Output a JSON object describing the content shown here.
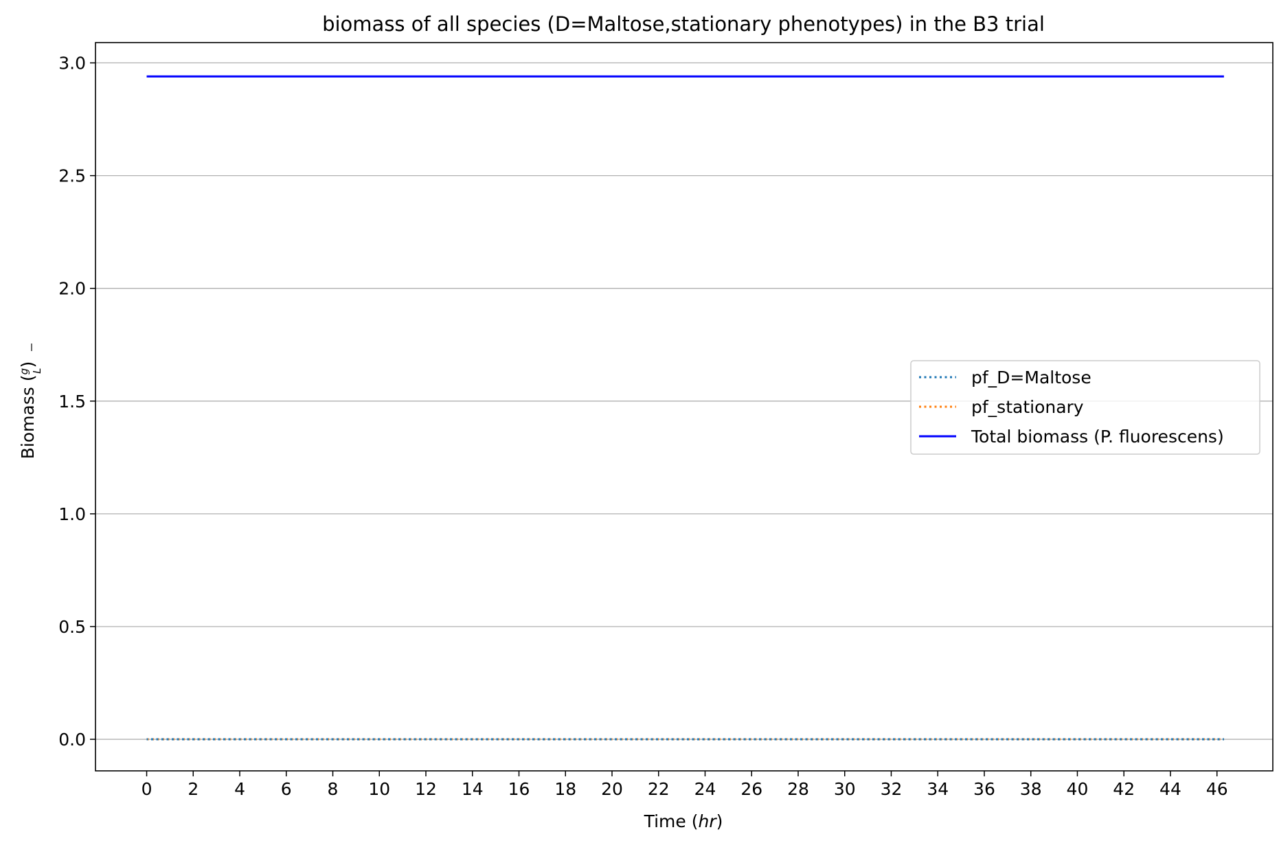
{
  "chart_data": {
    "type": "line",
    "title": "biomass of all species (D=Maltose,stationary phenotypes) in the B3 trial",
    "xlabel": {
      "prefix": "Time (",
      "italic": "hr",
      "suffix": ")"
    },
    "ylabel": {
      "prefix": "Biomass (",
      "numerator": "g",
      "denominator": "L",
      "suffix": ")"
    },
    "xlim": [
      -2.2,
      48.4
    ],
    "ylim": [
      -0.14,
      3.09
    ],
    "x_ticks": [
      0,
      2,
      4,
      6,
      8,
      10,
      12,
      14,
      16,
      18,
      20,
      22,
      24,
      26,
      28,
      30,
      32,
      34,
      36,
      38,
      40,
      42,
      44,
      46
    ],
    "y_ticks": [
      0.0,
      0.5,
      1.0,
      1.5,
      2.0,
      2.5,
      3.0
    ],
    "y_tick_labels": [
      "0.0",
      "0.5",
      "1.0",
      "1.5",
      "2.0",
      "2.5",
      "3.0"
    ],
    "grid": "y",
    "legend_position": "center-right",
    "series": [
      {
        "name": "pf_D=Maltose",
        "style": "dotted",
        "color": "#1f77b4",
        "x": [
          0,
          46.3
        ],
        "y": [
          0.0,
          0.0
        ]
      },
      {
        "name": "pf_stationary",
        "style": "dotted",
        "color": "#ff7f0e",
        "x": [
          0,
          46.3
        ],
        "y": [
          0.0,
          0.0
        ]
      },
      {
        "name": "Total biomass (P. fluorescens)",
        "style": "solid",
        "color": "#0000ff",
        "x": [
          0,
          46.3
        ],
        "y": [
          2.94,
          2.94
        ]
      }
    ]
  }
}
